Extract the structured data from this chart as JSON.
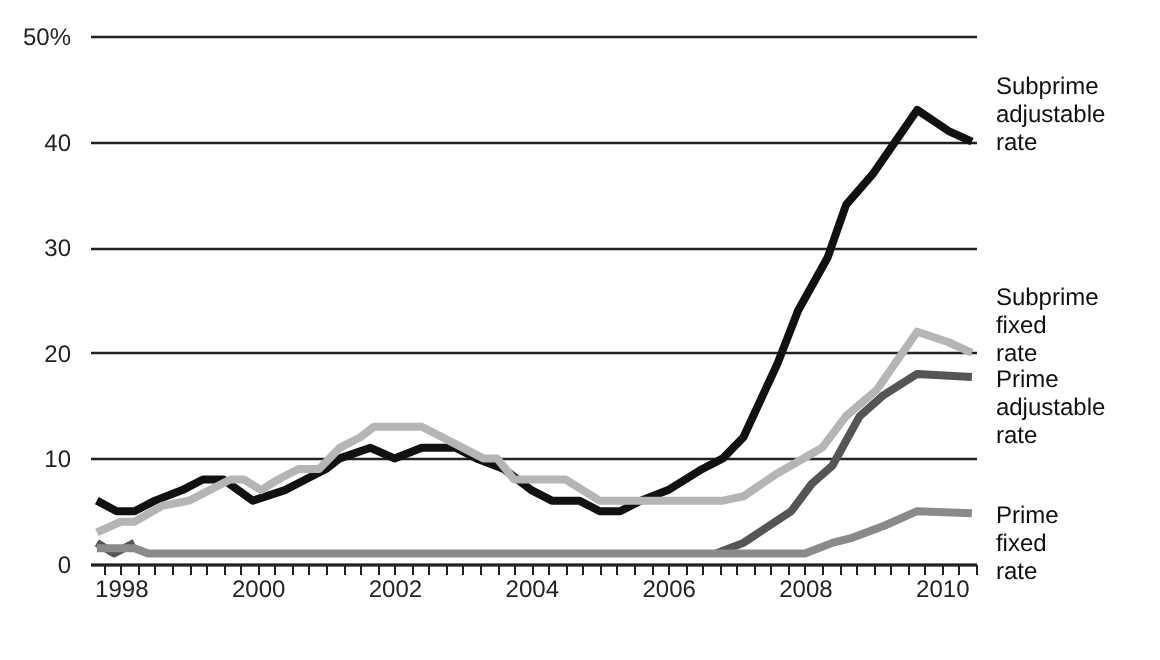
{
  "chart_data": {
    "type": "line",
    "xlim": [
      1997.55,
      2010.5
    ],
    "ylim": [
      0,
      50
    ],
    "yticks": [
      0,
      10,
      20,
      30,
      40,
      {
        "value": 50,
        "label": "50%"
      }
    ],
    "xticks": [
      {
        "value": 1997.75,
        "label": null
      },
      1998,
      {
        "value": 1998.25,
        "label": null
      },
      {
        "value": 1998.5,
        "label": null
      },
      {
        "value": 1998.75,
        "label": null
      },
      {
        "value": 1999,
        "label": null
      },
      {
        "value": 1999.25,
        "label": null
      },
      {
        "value": 1999.5,
        "label": null
      },
      {
        "value": 1999.75,
        "label": null
      },
      2000,
      {
        "value": 2000.25,
        "label": null
      },
      {
        "value": 2000.5,
        "label": null
      },
      {
        "value": 2000.75,
        "label": null
      },
      {
        "value": 2001,
        "label": null
      },
      {
        "value": 2001.25,
        "label": null
      },
      {
        "value": 2001.5,
        "label": null
      },
      {
        "value": 2001.75,
        "label": null
      },
      2002,
      {
        "value": 2002.25,
        "label": null
      },
      {
        "value": 2002.5,
        "label": null
      },
      {
        "value": 2002.75,
        "label": null
      },
      {
        "value": 2003,
        "label": null
      },
      {
        "value": 2003.25,
        "label": null
      },
      {
        "value": 2003.5,
        "label": null
      },
      {
        "value": 2003.75,
        "label": null
      },
      2004,
      {
        "value": 2004.25,
        "label": null
      },
      {
        "value": 2004.5,
        "label": null
      },
      {
        "value": 2004.75,
        "label": null
      },
      {
        "value": 2005,
        "label": null
      },
      {
        "value": 2005.25,
        "label": null
      },
      {
        "value": 2005.5,
        "label": null
      },
      {
        "value": 2005.75,
        "label": null
      },
      2006,
      {
        "value": 2006.25,
        "label": null
      },
      {
        "value": 2006.5,
        "label": null
      },
      {
        "value": 2006.75,
        "label": null
      },
      {
        "value": 2007,
        "label": null
      },
      {
        "value": 2007.25,
        "label": null
      },
      {
        "value": 2007.5,
        "label": null
      },
      {
        "value": 2007.75,
        "label": null
      },
      2008,
      {
        "value": 2008.25,
        "label": null
      },
      {
        "value": 2008.5,
        "label": null
      },
      {
        "value": 2008.75,
        "label": null
      },
      {
        "value": 2009,
        "label": null
      },
      {
        "value": 2009.25,
        "label": null
      },
      {
        "value": 2009.5,
        "label": null
      },
      {
        "value": 2009.75,
        "label": null
      },
      2010,
      {
        "value": 2010.25,
        "label": null
      },
      {
        "value": 2010.5,
        "label": null
      }
    ],
    "grid": "y",
    "line_style": "solid",
    "marker": "none",
    "series": [
      {
        "name": "Subprime adjustable rate",
        "color": "#111111",
        "x": [
          1997.65,
          1997.94,
          1998.2,
          1998.5,
          1998.9,
          1999.2,
          1999.5,
          1999.93,
          2000.4,
          2000.7,
          2001.0,
          2001.2,
          2001.65,
          2002.0,
          2002.4,
          2002.9,
          2003.2,
          2003.6,
          2004.0,
          2004.3,
          2004.7,
          2005.0,
          2005.3,
          2005.6,
          2006.0,
          2006.5,
          2006.8,
          2007.1,
          2007.6,
          2007.9,
          2008.33,
          2008.6,
          2009.0,
          2009.64,
          2010.1,
          2010.44
        ],
        "values": [
          6,
          5,
          5,
          6,
          7,
          8,
          8,
          6,
          7,
          8,
          9,
          10,
          11,
          10,
          11,
          11,
          10,
          9,
          7,
          6,
          6,
          5,
          5,
          6,
          7,
          9,
          10,
          12,
          19,
          24,
          29,
          34,
          37,
          43,
          41,
          40
        ]
      },
      {
        "name": "Subprime fixed rate",
        "color": "#b5b5b5",
        "x": [
          1997.65,
          1998.0,
          1998.2,
          1998.6,
          1999.0,
          1999.3,
          1999.6,
          1999.8,
          2000.05,
          2000.3,
          2000.6,
          2000.9,
          2001.2,
          2001.5,
          2001.7,
          2002.0,
          2002.4,
          2002.7,
          2003.0,
          2003.3,
          2003.5,
          2003.75,
          2004.1,
          2004.5,
          2004.75,
          2005.0,
          2006.0,
          2006.8,
          2007.1,
          2007.6,
          2008.25,
          2008.6,
          2009.05,
          2009.64,
          2010.1,
          2010.44
        ],
        "values": [
          3,
          4,
          4,
          5.5,
          6,
          7,
          8,
          8,
          7,
          8,
          9,
          9,
          11,
          12,
          13,
          13,
          13,
          12,
          11,
          10,
          10,
          8,
          8,
          8,
          7,
          6,
          6,
          6,
          6.4,
          8.6,
          11,
          14,
          16.5,
          22,
          21,
          20
        ]
      },
      {
        "name": "Prime adjustable rate",
        "color": "#555555",
        "x": [
          1997.65,
          1997.9,
          1998.2,
          1998.4,
          2006.7,
          2007.1,
          2007.8,
          2008.1,
          2008.4,
          2008.8,
          2009.15,
          2009.64,
          2010.44
        ],
        "values": [
          2,
          1,
          2,
          null,
          1,
          2,
          5,
          7.6,
          9.3,
          14,
          16,
          18,
          17.7
        ]
      },
      {
        "name": "Prime fixed rate",
        "color": "#8a8a8a",
        "x": [
          1997.65,
          1998.2,
          1998.4,
          2008.0,
          2008.4,
          2008.7,
          2009.15,
          2009.64,
          2010.44
        ],
        "values": [
          1.5,
          1.5,
          1,
          1,
          2,
          2.5,
          3.6,
          5,
          4.8
        ]
      }
    ]
  }
}
